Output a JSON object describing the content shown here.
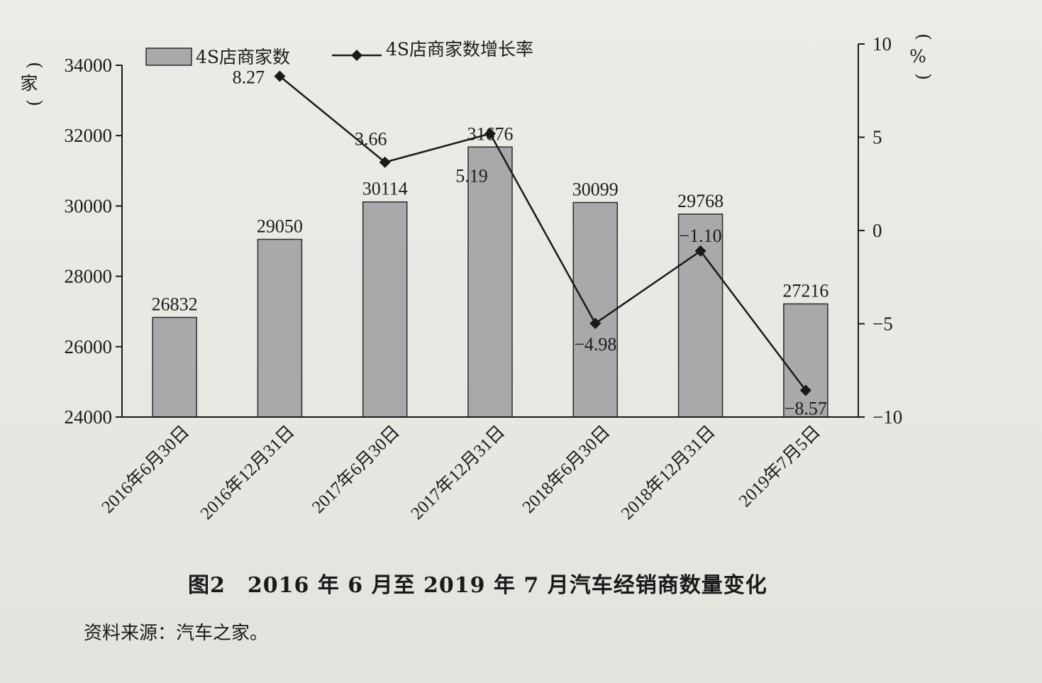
{
  "chart_data": {
    "type": "bar",
    "categories": [
      "2016年6月30日",
      "2016年12月31日",
      "2017年6月30日",
      "2017年12月31日",
      "2018年6月30日",
      "2018年12月31日",
      "2019年7月5日"
    ],
    "series": [
      {
        "name": "4S店商家数",
        "type": "bar",
        "axis": "left",
        "values": [
          26832,
          29050,
          30114,
          31676,
          30099,
          29768,
          27216
        ],
        "labels": [
          "26832",
          "29050",
          "30114",
          "31676",
          "30099",
          "29768",
          "27216"
        ],
        "color": "#a9a8ab"
      },
      {
        "name": "4S店商家数增长率",
        "type": "line",
        "axis": "right",
        "values": [
          null,
          8.27,
          3.66,
          5.19,
          -4.98,
          -1.1,
          -8.57
        ],
        "labels": [
          "",
          "8.27",
          "3.66",
          "5.19",
          "−4.98",
          "−1.10",
          "−8.57"
        ],
        "color": "#1a1a1a"
      }
    ],
    "y_left": {
      "unit": "家",
      "min": 24000,
      "max": 34000,
      "ticks": [
        24000,
        26000,
        28000,
        30000,
        32000,
        34000
      ],
      "tick_labels": [
        "24000",
        "26000",
        "28000",
        "30000",
        "32000",
        "34000"
      ]
    },
    "y_right": {
      "unit": "%",
      "min": -10,
      "max": 10,
      "ticks": [
        -10,
        -5,
        0,
        5,
        10
      ],
      "tick_labels": [
        "−10",
        "−5",
        "0",
        "5",
        "10"
      ]
    },
    "legend_position": "top",
    "grid": false
  },
  "caption": "图2　2016 年 6 月至 2019 年 7 月汽车经销商数量变化",
  "source": "资料来源：汽车之家。"
}
